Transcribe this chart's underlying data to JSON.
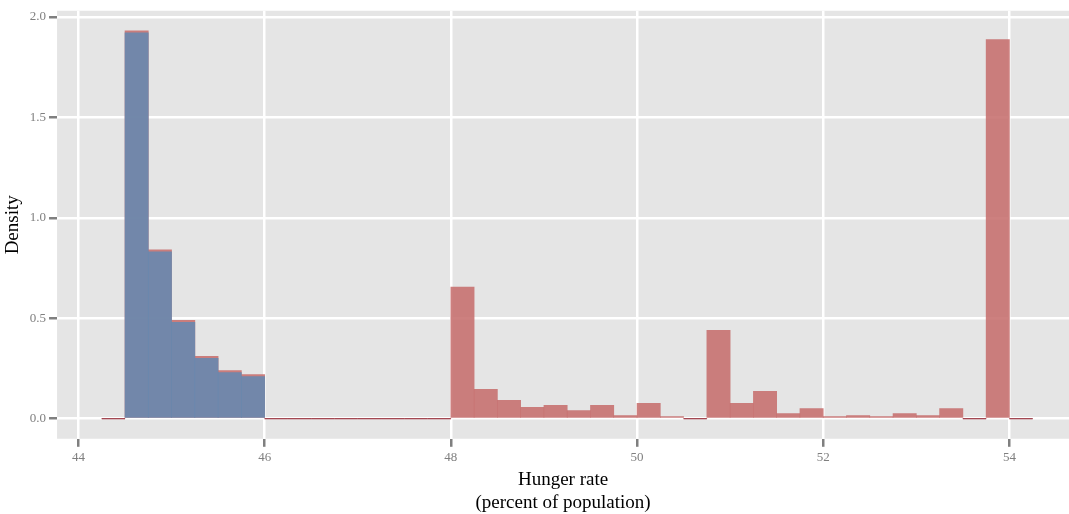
{
  "chart_data": {
    "type": "histogram",
    "xlabel": "Hunger rate\n(percent of population)",
    "ylabel": "Density",
    "bins": [
      44.25,
      44.5,
      44.75,
      45,
      45.25,
      45.5,
      45.75,
      46,
      46.25,
      46.5,
      46.75,
      47,
      47.25,
      47.5,
      47.75,
      48,
      48.25,
      48.5,
      48.75,
      49,
      49.25,
      49.5,
      49.75,
      50,
      50.25,
      50.5,
      50.75,
      51,
      51.25,
      51.5,
      51.75,
      52,
      52.25,
      52.5,
      52.75,
      53,
      53.25,
      53.5,
      53.75,
      54,
      54.25
    ],
    "series": [
      {
        "color": "#c66e6d",
        "values": [
          0,
          1.93,
          0.84,
          0.49,
          0.31,
          0.24,
          0.22,
          0,
          0,
          0,
          0,
          0,
          0,
          0,
          0,
          0.655,
          0.146,
          0.091,
          0.056,
          0.066,
          0.041,
          0.066,
          0.016,
          0.076,
          0.01,
          0,
          0.44,
          0.076,
          0.136,
          0.026,
          0.051,
          0.01,
          0.016,
          0.011,
          0.026,
          0.016,
          0.051,
          0,
          1.887,
          0
        ]
      },
      {
        "color": "#6589b0",
        "values": [
          null,
          1.92,
          0.83,
          0.48,
          0.3,
          0.23,
          0.21,
          null,
          null,
          null,
          null,
          null,
          null,
          null,
          null,
          null,
          null,
          null,
          null,
          null,
          null,
          null,
          null,
          null,
          null,
          null,
          null,
          null,
          null,
          null,
          null,
          null,
          null,
          null,
          null,
          null,
          null,
          null,
          null,
          null
        ]
      }
    ],
    "xlim": [
      43.77,
      54.64
    ],
    "xticks": [
      44,
      46,
      48,
      50,
      52,
      54
    ],
    "ylim": [
      -0.1,
      2.03
    ],
    "yticks": [
      {
        "value": 0,
        "label": "0.0"
      },
      {
        "value": 0.5,
        "label": "0.5"
      },
      {
        "value": 1,
        "label": "1.0"
      },
      {
        "value": 1.5,
        "label": "1.5"
      },
      {
        "value": 2,
        "label": "2.0"
      }
    ],
    "grid": true,
    "legend": false
  }
}
